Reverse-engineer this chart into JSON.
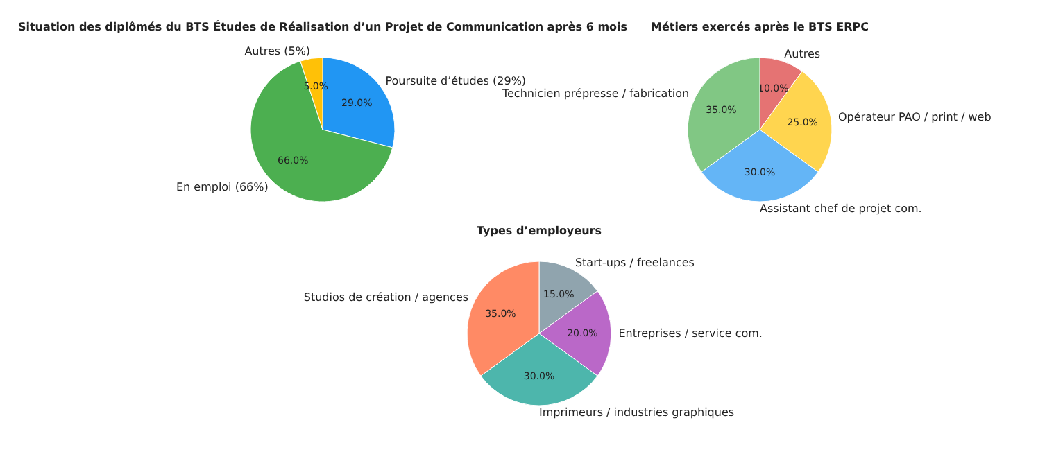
{
  "chart_data": [
    {
      "type": "pie",
      "title": "Situation des diplômés du BTS Études de Réalisation d’un Projet de Communication après 6 mois",
      "categories": [
        "Poursuite d’études (29%)",
        "En emploi (66%)",
        "Autres (5%)"
      ],
      "values": [
        29,
        66,
        5
      ],
      "colors": [
        "#2196f3",
        "#4caf50",
        "#ffc107"
      ],
      "value_labels": [
        "29.0%",
        "66.0%",
        "5.0%"
      ]
    },
    {
      "type": "pie",
      "title": "Métiers exercés après le BTS ERPC",
      "categories": [
        "Autres",
        "Opérateur PAO / print / web",
        "Assistant chef de projet com.",
        "Technicien prépresse / fabrication"
      ],
      "values": [
        10,
        25,
        30,
        35
      ],
      "colors": [
        "#e57373",
        "#ffd54f",
        "#64b5f6",
        "#81c784"
      ],
      "value_labels": [
        "10.0%",
        "25.0%",
        "30.0%",
        "35.0%"
      ]
    },
    {
      "type": "pie",
      "title": "Types d’employeurs",
      "categories": [
        "Start-ups / freelances",
        "Entreprises / service com.",
        "Imprimeurs / industries graphiques",
        "Studios de création / agences"
      ],
      "values": [
        15,
        20,
        30,
        35
      ],
      "colors": [
        "#90a4ae",
        "#ba68c8",
        "#4db6ac",
        "#ff8a65"
      ],
      "value_labels": [
        "15.0%",
        "20.0%",
        "30.0%",
        "35.0%"
      ]
    }
  ]
}
